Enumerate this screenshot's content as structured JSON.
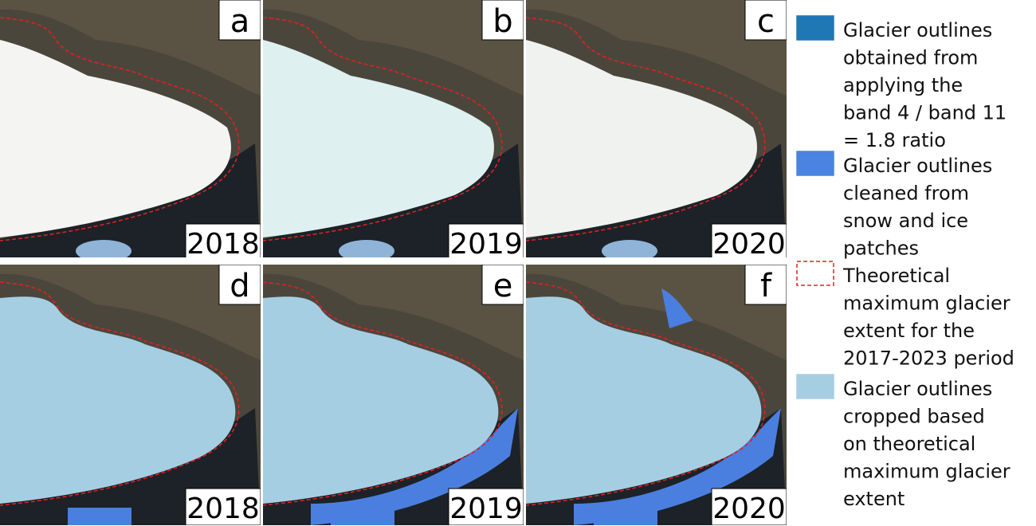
{
  "panels": [
    {
      "letter": "a",
      "year": "2018"
    },
    {
      "letter": "b",
      "year": "2019"
    },
    {
      "letter": "c",
      "year": "2020"
    },
    {
      "letter": "d",
      "year": "2018"
    },
    {
      "letter": "e",
      "year": "2019"
    },
    {
      "letter": "f",
      "year": "2020"
    }
  ],
  "legend": [
    {
      "lines": [
        "Glacier outlines",
        "obtained from",
        "applying the",
        "band 4 / band 11",
        "= 1.8 ratio"
      ]
    },
    {
      "lines": [
        "Glacier outlines",
        "cleaned from",
        "snow and ice",
        "patches"
      ]
    },
    {
      "lines": [
        "Theoretical",
        "maximum glacier",
        "extent for the",
        "2017-2023 period"
      ]
    },
    {
      "lines": [
        "Glacier outlines",
        "cropped based",
        "on theoretical",
        "maximum glacier",
        "extent"
      ]
    }
  ]
}
